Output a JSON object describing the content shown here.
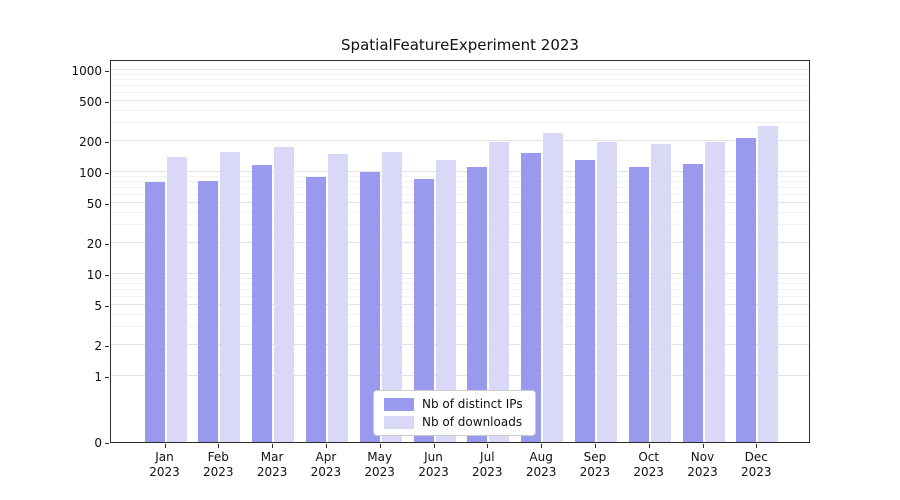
{
  "chart_data": {
    "type": "bar",
    "title": "SpatialFeatureExperiment 2023",
    "categories": [
      "Jan",
      "Feb",
      "Mar",
      "Apr",
      "May",
      "Jun",
      "Jul",
      "Aug",
      "Sep",
      "Oct",
      "Nov",
      "Dec"
    ],
    "year_label": "2023",
    "series": [
      {
        "name": "Nb of distinct IPs",
        "color": "#9999ee",
        "values": [
          80,
          82,
          118,
          89,
          100,
          86,
          113,
          155,
          132,
          111,
          120,
          218
        ]
      },
      {
        "name": "Nb of downloads",
        "color": "#d9d9f7",
        "values": [
          140,
          158,
          176,
          150,
          157,
          130,
          196,
          240,
          196,
          190,
          197,
          280
        ]
      }
    ],
    "y_ticks": [
      0,
      1,
      2,
      5,
      10,
      20,
      50,
      100,
      200,
      500,
      1000
    ],
    "y_scale": "symlog",
    "ylim": [
      0,
      1100
    ],
    "xlabel": "",
    "ylabel": "",
    "grid": true,
    "legend_position": "lower center"
  }
}
